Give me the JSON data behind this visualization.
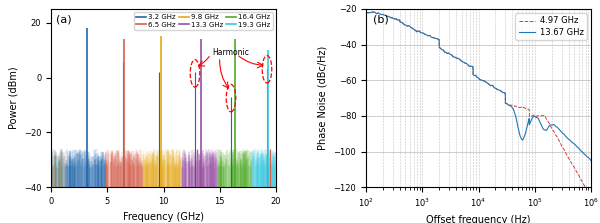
{
  "panel_a": {
    "title": "(a)",
    "xlabel": "Frequency (GHz)",
    "ylabel": "Power (dBm)",
    "xlim": [
      0,
      20
    ],
    "ylim": [
      -40,
      25
    ],
    "yticks": [
      -40,
      -20,
      0,
      20
    ],
    "xticks": [
      0,
      5,
      10,
      15,
      20
    ],
    "signals": [
      {
        "freq": 3.2,
        "power": 18,
        "color": "#2166ac",
        "label": "3.2 GHz"
      },
      {
        "freq": 6.5,
        "power": 14,
        "color": "#d6604d",
        "label": "6.5 GHz"
      },
      {
        "freq": 9.8,
        "power": 15,
        "color": "#e6a817",
        "label": "9.8 GHz"
      },
      {
        "freq": 13.3,
        "power": 14,
        "color": "#984ea3",
        "label": "13.3 GHz"
      },
      {
        "freq": 16.4,
        "power": 14,
        "color": "#4dac26",
        "label": "16.4 GHz"
      },
      {
        "freq": 19.3,
        "power": 10,
        "color": "#35c9e0",
        "label": "19.3 GHz"
      }
    ],
    "harmonic_annotation": "Harmonic",
    "noise_floor": -33,
    "noise_range": 7
  },
  "panel_b": {
    "title": "(b)",
    "xlabel": "Offset frequency (Hz)",
    "ylabel": "Phase Noise (dBc/Hz)",
    "xlim_log": [
      2,
      6
    ],
    "ylim": [
      -120,
      -20
    ],
    "yticks": [
      -120,
      -100,
      -80,
      -60,
      -40,
      -20
    ],
    "color_497": "#d62728",
    "color_1367": "#1f77b4",
    "label_497": "4.97 GHz",
    "label_1367": "13.67 GHz"
  }
}
